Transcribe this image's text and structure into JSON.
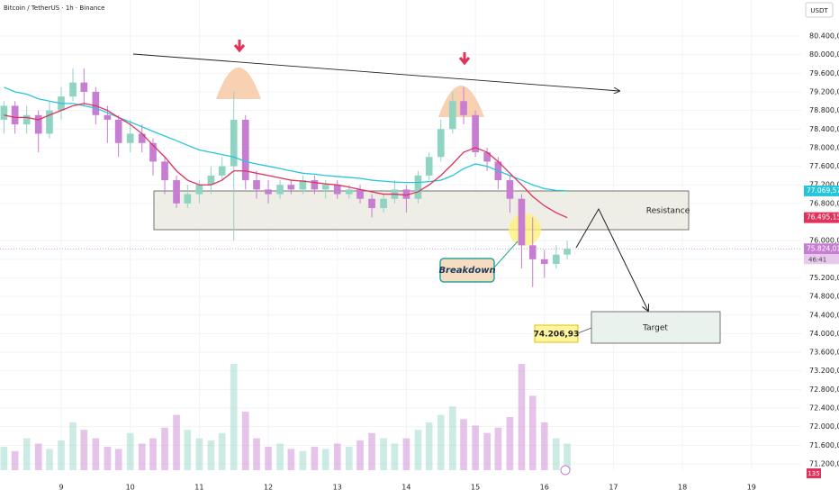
{
  "header": {
    "symbol": "Bitcoin / TetherUS · 1h · Binance",
    "currency": "USDT"
  },
  "chart_data": {
    "type": "candlestick",
    "x": [
      8.17,
      8.33,
      8.5,
      8.67,
      8.83,
      9,
      9.17,
      9.33,
      9.5,
      9.67,
      9.83,
      10,
      10.17,
      10.33,
      10.5,
      10.67,
      10.83,
      11,
      11.17,
      11.33,
      11.5,
      11.67,
      11.83,
      12,
      12.17,
      12.33,
      12.5,
      12.67,
      12.83,
      13,
      13.17,
      13.33,
      13.5,
      13.67,
      13.83,
      14,
      14.17,
      14.33,
      14.5,
      14.67,
      14.83,
      15,
      15.17,
      15.33,
      15.5,
      15.67,
      15.83,
      16,
      16.17,
      16.33
    ],
    "open": [
      78600,
      78900,
      78500,
      78700,
      78300,
      78800,
      79100,
      79400,
      79200,
      78700,
      78600,
      78100,
      78300,
      78100,
      77700,
      77300,
      76800,
      77000,
      77200,
      77400,
      77600,
      78600,
      77300,
      77100,
      77000,
      77200,
      77100,
      77300,
      77100,
      77200,
      77000,
      77100,
      76900,
      76700,
      76900,
      77100,
      76900,
      77400,
      77800,
      78400,
      79000,
      78700,
      77900,
      77700,
      77300,
      76900,
      75900,
      75600,
      75500,
      75700
    ],
    "high": [
      79000,
      79000,
      78900,
      78800,
      79000,
      79300,
      79700,
      79700,
      79300,
      78900,
      78700,
      78600,
      78500,
      78200,
      77800,
      77400,
      77200,
      77300,
      77600,
      77800,
      79200,
      78700,
      77500,
      77300,
      77300,
      77300,
      77400,
      77400,
      77300,
      77300,
      77200,
      77200,
      77000,
      77000,
      77300,
      77200,
      77500,
      77900,
      78600,
      79200,
      79300,
      78800,
      78000,
      77800,
      77400,
      77000,
      76500,
      75800,
      75900,
      76000
    ],
    "low": [
      78300,
      78300,
      78300,
      77900,
      78200,
      78600,
      79000,
      78900,
      78500,
      78100,
      77800,
      77900,
      77900,
      77400,
      77000,
      76700,
      76700,
      76800,
      77000,
      77300,
      76000,
      77100,
      76900,
      76800,
      76900,
      77000,
      77000,
      77000,
      76900,
      76900,
      76900,
      76800,
      76500,
      76600,
      76800,
      76600,
      76800,
      77300,
      77700,
      78300,
      78500,
      77800,
      77500,
      77100,
      76600,
      75400,
      75000,
      75200,
      75400,
      75600
    ],
    "close": [
      78900,
      78500,
      78700,
      78300,
      78800,
      79100,
      79400,
      79200,
      78700,
      78600,
      78100,
      78300,
      78100,
      77700,
      77300,
      76800,
      77000,
      77200,
      77400,
      77600,
      78600,
      77300,
      77100,
      77000,
      77200,
      77100,
      77300,
      77100,
      77200,
      77000,
      77100,
      76900,
      76700,
      76900,
      77100,
      76900,
      77400,
      77800,
      78400,
      79000,
      78700,
      77900,
      77700,
      77300,
      76900,
      75900,
      75600,
      75500,
      75700,
      75824.01
    ],
    "volume": [
      22,
      18,
      30,
      25,
      20,
      28,
      45,
      38,
      30,
      22,
      20,
      35,
      25,
      30,
      40,
      52,
      38,
      30,
      28,
      35,
      100,
      55,
      30,
      22,
      25,
      20,
      18,
      22,
      20,
      25,
      22,
      28,
      35,
      30,
      25,
      30,
      38,
      45,
      52,
      60,
      48,
      42,
      35,
      40,
      50,
      100,
      70,
      45,
      30,
      25
    ],
    "up_color": "#8fd3c3",
    "down_color": "#c77dd1",
    "ma": [
      {
        "color": "#26c6da",
        "values": [
          79300,
          79200,
          79150,
          79050,
          79000,
          78950,
          78950,
          78900,
          78850,
          78750,
          78650,
          78550,
          78450,
          78350,
          78250,
          78150,
          78050,
          77950,
          77900,
          77850,
          77800,
          77700,
          77650,
          77600,
          77550,
          77500,
          77450,
          77430,
          77400,
          77380,
          77360,
          77340,
          77300,
          77280,
          77260,
          77250,
          77250,
          77270,
          77300,
          77400,
          77550,
          77650,
          77600,
          77500,
          77400,
          77300,
          77200,
          77120,
          77080,
          77069.57
        ]
      },
      {
        "color": "#e0325a",
        "values": [
          78700,
          78650,
          78650,
          78600,
          78700,
          78800,
          78900,
          78950,
          78900,
          78800,
          78650,
          78500,
          78300,
          78050,
          77800,
          77500,
          77300,
          77200,
          77200,
          77300,
          77500,
          77500,
          77450,
          77400,
          77350,
          77300,
          77280,
          77250,
          77220,
          77200,
          77150,
          77100,
          77050,
          77000,
          77000,
          76980,
          77050,
          77200,
          77400,
          77650,
          77900,
          78000,
          77900,
          77700,
          77450,
          77200,
          76950,
          76750,
          76600,
          76495.15
        ]
      }
    ],
    "price_labels": [
      {
        "value": 77069.57,
        "label": "77.069,57",
        "color": "#26c6da"
      },
      {
        "value": 76495.15,
        "label": "76.495,15",
        "color": "#e0325a"
      },
      {
        "value": 75824.01,
        "label": "75.824,01",
        "color": "#c77dd1"
      }
    ],
    "countdown": "46:41",
    "volume_label": "135",
    "xlim": [
      8.113,
      19.72
    ],
    "xticks": [
      9,
      10,
      11,
      12,
      13,
      14,
      15,
      16,
      17,
      18,
      19
    ],
    "ylim": [
      71064,
      81175
    ],
    "yticks": [
      {
        "value": 80400,
        "label": "80.400,00"
      },
      {
        "value": 80000,
        "label": "80.000,00"
      },
      {
        "value": 79600,
        "label": "79.600,00"
      },
      {
        "value": 79200,
        "label": "79.200,00"
      },
      {
        "value": 78800,
        "label": "78.800,00"
      },
      {
        "value": 78400,
        "label": "78.400,00"
      },
      {
        "value": 78000,
        "label": "78.000,00"
      },
      {
        "value": 77600,
        "label": "77.600,00"
      },
      {
        "value": 77200,
        "label": "77.200,00"
      },
      {
        "value": 76800,
        "label": "76.800,00"
      },
      {
        "value": 76000,
        "label": "76.000,00"
      },
      {
        "value": 75600,
        "label": "75.600,00"
      },
      {
        "value": 75200,
        "label": "75.200,00"
      },
      {
        "value": 74800,
        "label": "74.800,00"
      },
      {
        "value": 74400,
        "label": "74.400,00"
      },
      {
        "value": 74000,
        "label": "74.000,00"
      },
      {
        "value": 73600,
        "label": "73.600,00"
      },
      {
        "value": 73200,
        "label": "73.200,00"
      },
      {
        "value": 72800,
        "label": "72.800,00"
      },
      {
        "value": 72400,
        "label": "72.400,00"
      },
      {
        "value": 72000,
        "label": "72.000,00"
      },
      {
        "value": 71600,
        "label": "71.600,00"
      },
      {
        "value": 71200,
        "label": "71.200,00"
      }
    ],
    "annotations": {
      "resistance": "Resistance",
      "target": "Target",
      "target_price": "74.206,93",
      "breakdown": "Breakdown"
    }
  }
}
